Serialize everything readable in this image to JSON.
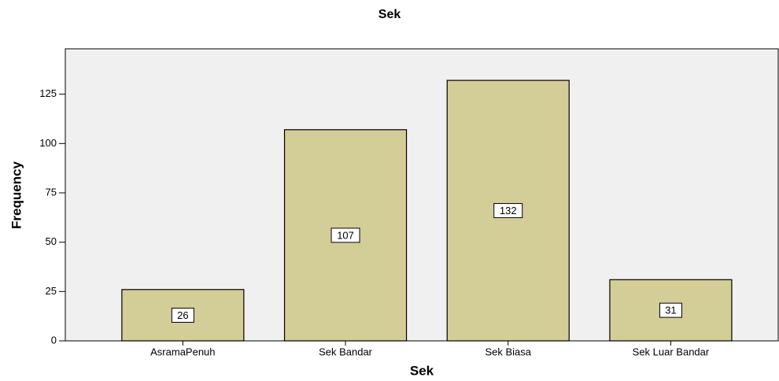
{
  "chart_data": {
    "type": "bar",
    "title": "Sek",
    "x_label": "Sek",
    "y_label": "Frequency",
    "categories": [
      "AsramaPenuh",
      "Sek Bandar",
      "Sek Biasa",
      "Sek Luar Bandar"
    ],
    "values": [
      26,
      107,
      132,
      31
    ],
    "color": "#d3ce97",
    "background": "#f0f0f0",
    "ylim": [
      0,
      148
    ],
    "yticks": [
      0,
      25,
      50,
      75,
      100,
      125
    ],
    "grid": false,
    "data_labels": true
  }
}
